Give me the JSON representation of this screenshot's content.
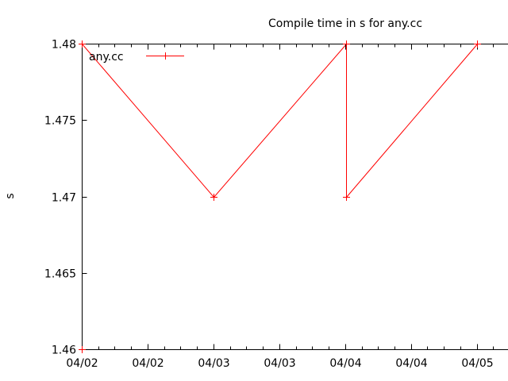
{
  "chart_data": {
    "type": "line",
    "title": "Compile time in s for any.cc",
    "ylabel": "s",
    "xlabel": "",
    "grid": false,
    "legend_position": "top-left-inside",
    "ylim": [
      1.46,
      1.48
    ],
    "xlim_days": [
      0,
      3.24
    ],
    "minor_xticks_per_major": 4,
    "yticks": [
      {
        "value": 1.46,
        "label": "1.46"
      },
      {
        "value": 1.465,
        "label": "1.465"
      },
      {
        "value": 1.47,
        "label": "1.47"
      },
      {
        "value": 1.475,
        "label": "1.475"
      },
      {
        "value": 1.48,
        "label": "1.48"
      }
    ],
    "xticks": [
      {
        "days": 0.0,
        "label": "04/02"
      },
      {
        "days": 0.5,
        "label": "04/02"
      },
      {
        "days": 1.0,
        "label": "04/03"
      },
      {
        "days": 1.5,
        "label": "04/03"
      },
      {
        "days": 2.0,
        "label": "04/04"
      },
      {
        "days": 2.5,
        "label": "04/04"
      },
      {
        "days": 3.0,
        "label": "04/05"
      }
    ],
    "series": [
      {
        "name": "any.cc",
        "color": "#ff0000",
        "marker": "plus",
        "points": [
          {
            "date": "04/02",
            "days": 0.0,
            "value": 1.46
          },
          {
            "date": "04/02",
            "days": 0.0,
            "value": 1.48
          },
          {
            "date": "04/03",
            "days": 1.0,
            "value": 1.47
          },
          {
            "date": "04/04",
            "days": 2.005,
            "value": 1.48
          },
          {
            "date": "04/04",
            "days": 2.005,
            "value": 1.47
          },
          {
            "date": "04/05",
            "days": 3.0,
            "value": 1.48
          }
        ]
      }
    ],
    "colors": {
      "axis": "#000000",
      "text": "#000000",
      "background": "#ffffff",
      "series": "#ff0000"
    }
  }
}
